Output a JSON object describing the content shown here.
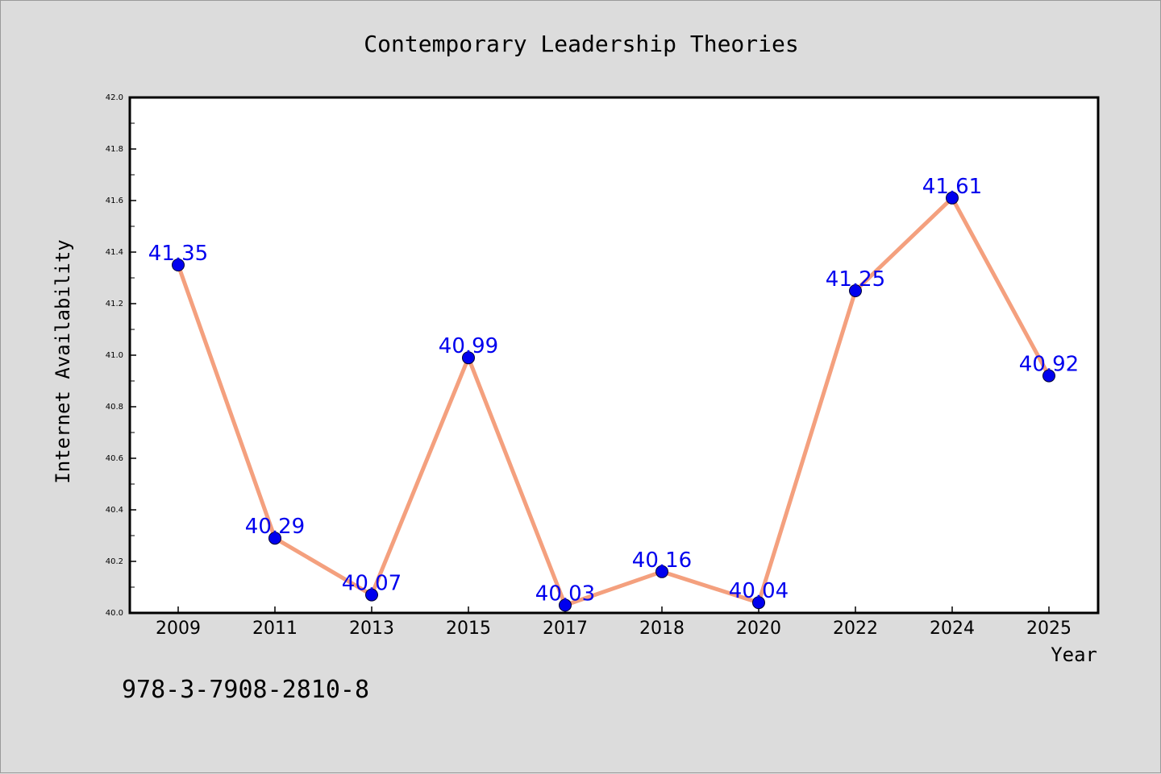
{
  "chart_data": {
    "type": "line",
    "title": "Contemporary Leadership Theories",
    "xlabel": "Year",
    "ylabel": "Internet Availability",
    "categories": [
      "2009",
      "2011",
      "2013",
      "2015",
      "2017",
      "2018",
      "2020",
      "2022",
      "2024",
      "2025"
    ],
    "series": [
      {
        "values": [
          41.35,
          40.29,
          40.07,
          40.99,
          40.03,
          40.16,
          40.04,
          41.25,
          41.61,
          40.92
        ],
        "data_labels": [
          "41.35",
          "40.29",
          "40.07",
          "40.99",
          "40.03",
          "40.16",
          "40.04",
          "41.25",
          "41.61",
          "40.92"
        ],
        "line_color": "#f4a07e",
        "marker_color": "#0000ee",
        "label_color": "#0000ee"
      }
    ],
    "ylim": [
      40.0,
      42.0
    ],
    "yticks": [
      "40.0",
      "40.2",
      "40.4",
      "40.6",
      "40.8",
      "41.0",
      "41.2",
      "41.4",
      "41.6",
      "41.8",
      "42.0"
    ],
    "grid": false,
    "legend": "none"
  },
  "footer_text": "978-3-7908-2810-8",
  "colors": {
    "background": "#dcdcdc",
    "plot_area": "#ffffff",
    "axis": "#000000"
  }
}
